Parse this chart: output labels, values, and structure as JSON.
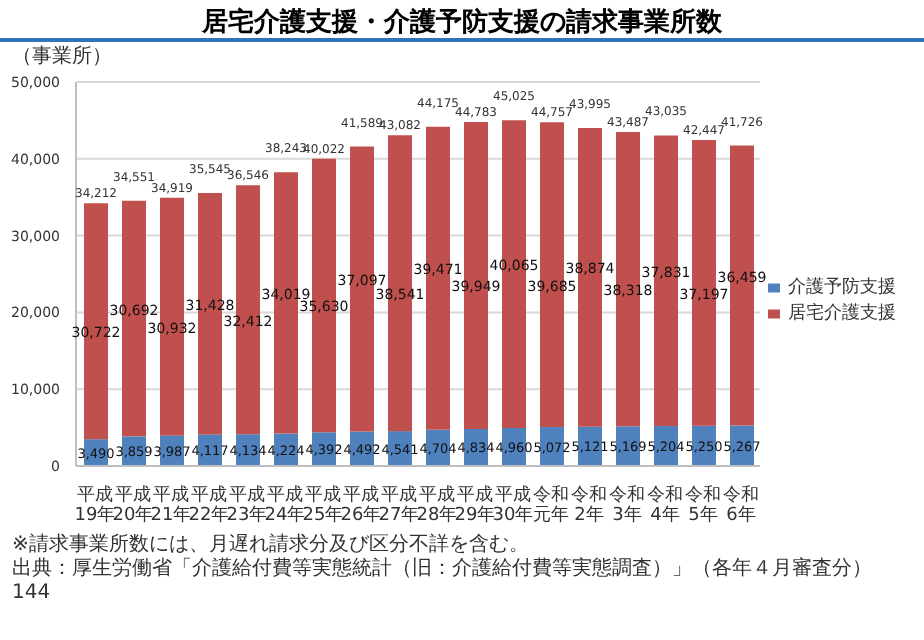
{
  "chart_data": {
    "type": "bar",
    "title": "居宅介護支援・介護予防支援の請求事業所数",
    "ylabel": "（事業所）",
    "categories": [
      "平成19年",
      "平成20年",
      "平成21年",
      "平成22年",
      "平成23年",
      "平成24年",
      "平成25年",
      "平成26年",
      "平成27年",
      "平成28年",
      "平成29年",
      "平成30年",
      "令和元年",
      "令和2年",
      "令和3年",
      "令和4年",
      "令和5年",
      "令和6年"
    ],
    "series": [
      {
        "name": "介護予防支援",
        "color": "#4f81bd",
        "values": [
          3490,
          3859,
          3987,
          4117,
          4134,
          4224,
          4392,
          4492,
          4541,
          4704,
          4834,
          4960,
          5072,
          5121,
          5169,
          5204,
          5250,
          5267
        ],
        "value_labels": [
          "3,490",
          "3,859",
          "3,987",
          "4,117",
          "4,134",
          "4,224",
          "4,392",
          "4,492",
          "4,541",
          "4,704",
          "4,834",
          "4,960",
          "5,072",
          "5,121",
          "5,169",
          "5,204",
          "5,250",
          "5,267"
        ]
      },
      {
        "name": "居宅介護支援",
        "color": "#c0504d",
        "values": [
          30722,
          30692,
          30932,
          31428,
          32412,
          34019,
          35630,
          37097,
          38541,
          39471,
          39949,
          40065,
          39685,
          38874,
          38318,
          37831,
          37197,
          36459
        ],
        "value_labels": [
          "30,722",
          "30,692",
          "30,932",
          "31,428",
          "32,412",
          "34,019",
          "35,630",
          "37,097",
          "38,541",
          "39,471",
          "39,949",
          "40,065",
          "39,685",
          "38,874",
          "38,318",
          "37,831",
          "37,197",
          "36,459"
        ]
      }
    ],
    "stacked": true,
    "totals": [
      "34,212",
      "34,551",
      "34,919",
      "35,545",
      "36,546",
      "38,243",
      "40,022",
      "41,589",
      "43,082",
      "44,175",
      "44,783",
      "45,025",
      "44,757",
      "43,995",
      "43,487",
      "43,035",
      "42,447",
      "41,726"
    ],
    "ylim": [
      0,
      50000
    ],
    "yticks": [
      0,
      {
        "value": 10000,
        "label": "10,000"
      },
      {
        "value": 20000,
        "label": "20,000"
      },
      {
        "value": 30000,
        "label": "30,000"
      },
      {
        "value": 40000,
        "label": "40,000"
      },
      {
        "value": 50000,
        "label": "50,000"
      }
    ],
    "grid": "y",
    "legend": "right",
    "annotations": [
      "※請求事業所数には、月遅れ請求分及び区分不詳を含む。",
      "出典：厚生労働省「介護給付費等実態統計（旧：介護給付費等実態調査）」（各年４月審査分）",
      "144"
    ]
  }
}
